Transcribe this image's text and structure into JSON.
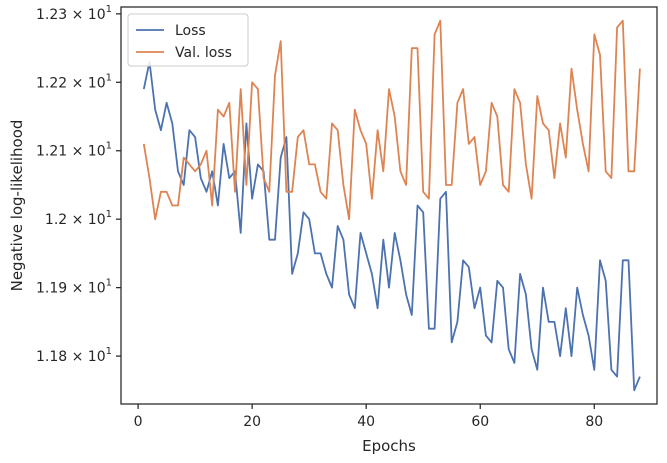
{
  "chart_data": {
    "type": "line",
    "xlabel": "Epochs",
    "ylabel": "Negative log-likelihood",
    "xlim": [
      -3,
      91
    ],
    "ylim": [
      11.73,
      12.31
    ],
    "x_ticks": [
      0,
      20,
      40,
      60,
      80
    ],
    "x_tick_labels": [
      "0",
      "20",
      "40",
      "60",
      "80"
    ],
    "y_ticks": [
      11.8,
      11.9,
      12.0,
      12.1,
      12.2,
      12.3
    ],
    "y_tick_labels": [
      {
        "mantissa": "1.18",
        "base": "10",
        "exp": "1"
      },
      {
        "mantissa": "1.19",
        "base": "10",
        "exp": "1"
      },
      {
        "mantissa": "1.2",
        "base": "10",
        "exp": "1"
      },
      {
        "mantissa": "1.21",
        "base": "10",
        "exp": "1"
      },
      {
        "mantissa": "1.22",
        "base": "10",
        "exp": "1"
      },
      {
        "mantissa": "1.23",
        "base": "10",
        "exp": "1"
      }
    ],
    "legend_position": "top-left",
    "grid": false,
    "x": [
      1,
      2,
      3,
      4,
      5,
      6,
      7,
      8,
      9,
      10,
      11,
      12,
      13,
      14,
      15,
      16,
      17,
      18,
      19,
      20,
      21,
      22,
      23,
      24,
      25,
      26,
      27,
      28,
      29,
      30,
      31,
      32,
      33,
      34,
      35,
      36,
      37,
      38,
      39,
      40,
      41,
      42,
      43,
      44,
      45,
      46,
      47,
      48,
      49,
      50,
      51,
      52,
      53,
      54,
      55,
      56,
      57,
      58,
      59,
      60,
      61,
      62,
      63,
      64,
      65,
      66,
      67,
      68,
      69,
      70,
      71,
      72,
      73,
      74,
      75,
      76,
      77,
      78,
      79,
      80,
      81,
      82,
      83,
      84,
      85,
      86,
      87,
      88
    ],
    "series": [
      {
        "name": "Loss",
        "color": "#4c72b0",
        "values": [
          12.19,
          12.23,
          12.16,
          12.13,
          12.17,
          12.14,
          12.07,
          12.05,
          12.13,
          12.12,
          12.06,
          12.04,
          12.07,
          12.02,
          12.11,
          12.06,
          12.07,
          11.98,
          12.14,
          12.03,
          12.08,
          12.07,
          11.97,
          11.97,
          12.09,
          12.12,
          11.92,
          11.95,
          12.01,
          12.0,
          11.95,
          11.95,
          11.92,
          11.9,
          11.99,
          11.97,
          11.89,
          11.87,
          11.98,
          11.95,
          11.92,
          11.87,
          11.97,
          11.9,
          11.98,
          11.94,
          11.89,
          11.86,
          12.02,
          12.01,
          11.84,
          11.84,
          12.03,
          12.04,
          11.82,
          11.85,
          11.94,
          11.93,
          11.87,
          11.9,
          11.83,
          11.82,
          11.91,
          11.9,
          11.81,
          11.79,
          11.92,
          11.89,
          11.81,
          11.78,
          11.9,
          11.85,
          11.85,
          11.8,
          11.87,
          11.8,
          11.9,
          11.86,
          11.83,
          11.78,
          11.94,
          11.91,
          11.78,
          11.77,
          11.94,
          11.94,
          11.75,
          11.77
        ]
      },
      {
        "name": "Val. loss",
        "color": "#dd8452",
        "values": [
          12.11,
          12.06,
          12.0,
          12.04,
          12.04,
          12.02,
          12.02,
          12.09,
          12.08,
          12.07,
          12.08,
          12.1,
          12.02,
          12.16,
          12.15,
          12.17,
          12.04,
          12.19,
          12.05,
          12.2,
          12.19,
          12.06,
          12.04,
          12.21,
          12.26,
          12.04,
          12.04,
          12.12,
          12.13,
          12.08,
          12.08,
          12.04,
          12.03,
          12.14,
          12.13,
          12.05,
          12.0,
          12.16,
          12.13,
          12.11,
          12.03,
          12.13,
          12.07,
          12.19,
          12.15,
          12.07,
          12.05,
          12.25,
          12.25,
          12.04,
          12.03,
          12.27,
          12.29,
          12.05,
          12.05,
          12.17,
          12.19,
          12.11,
          12.12,
          12.05,
          12.07,
          12.17,
          12.15,
          12.05,
          12.04,
          12.19,
          12.17,
          12.08,
          12.03,
          12.18,
          12.14,
          12.13,
          12.06,
          12.14,
          12.09,
          12.22,
          12.16,
          12.11,
          12.07,
          12.27,
          12.24,
          12.07,
          12.06,
          12.28,
          12.29,
          12.07,
          12.07,
          12.22
        ]
      }
    ]
  }
}
